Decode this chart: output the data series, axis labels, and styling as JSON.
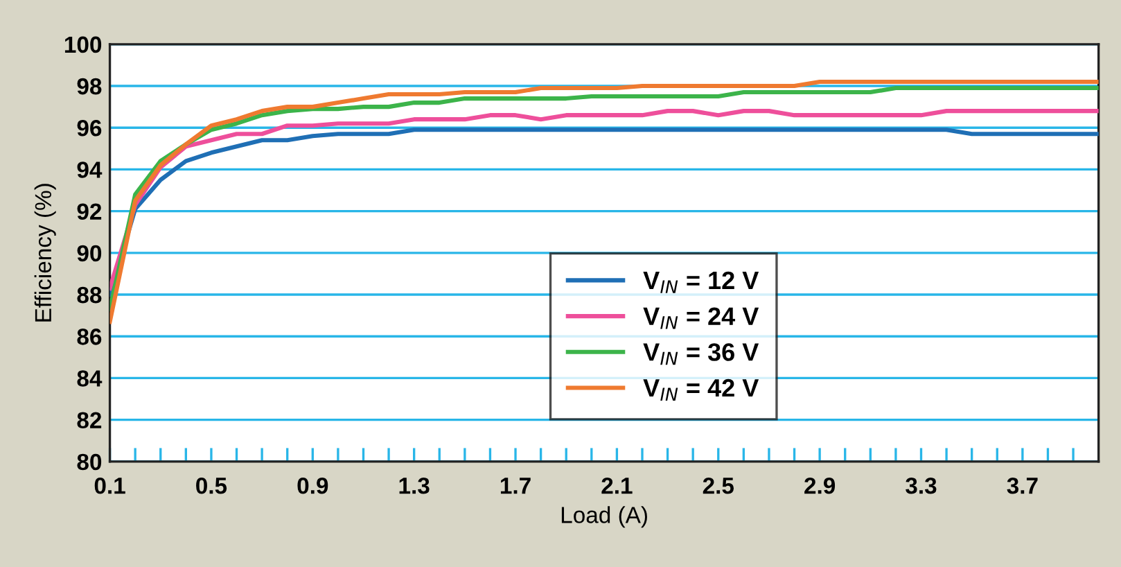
{
  "chart_data": {
    "type": "line",
    "xlabel": "Load (A)",
    "ylabel": "Efficiency (%)",
    "x": [
      0.1,
      0.2,
      0.3,
      0.4,
      0.5,
      0.6,
      0.7,
      0.8,
      0.9,
      1.0,
      1.1,
      1.2,
      1.3,
      1.4,
      1.5,
      1.6,
      1.7,
      1.8,
      1.9,
      2.0,
      2.1,
      2.2,
      2.3,
      2.4,
      2.5,
      2.6,
      2.7,
      2.8,
      2.9,
      3.0,
      3.1,
      3.2,
      3.3,
      3.4,
      3.5,
      3.6,
      3.7,
      3.8,
      3.9,
      4.0
    ],
    "series": [
      {
        "name": "V$_{IN}$ = 12 V",
        "color": "#1f6fb5",
        "values": [
          88.0,
          92.1,
          93.5,
          94.4,
          94.8,
          95.1,
          95.4,
          95.4,
          95.6,
          95.7,
          95.7,
          95.7,
          95.9,
          95.9,
          95.9,
          95.9,
          95.9,
          95.9,
          95.9,
          95.9,
          95.9,
          95.9,
          95.9,
          95.9,
          95.9,
          95.9,
          95.9,
          95.9,
          95.9,
          95.9,
          95.9,
          95.9,
          95.9,
          95.9,
          95.7,
          95.7,
          95.7,
          95.7,
          95.7,
          95.7
        ]
      },
      {
        "name": "V$_{IN}$ = 24 V",
        "color": "#ee4f9b",
        "values": [
          88.3,
          92.3,
          94.1,
          95.1,
          95.4,
          95.7,
          95.7,
          96.1,
          96.1,
          96.2,
          96.2,
          96.2,
          96.4,
          96.4,
          96.4,
          96.6,
          96.6,
          96.4,
          96.6,
          96.6,
          96.6,
          96.6,
          96.8,
          96.8,
          96.6,
          96.8,
          96.8,
          96.6,
          96.6,
          96.6,
          96.6,
          96.6,
          96.6,
          96.8,
          96.8,
          96.8,
          96.8,
          96.8,
          96.8,
          96.8
        ]
      },
      {
        "name": "V$_{IN}$ = 36 V",
        "color": "#3cb44a",
        "values": [
          87.3,
          92.8,
          94.4,
          95.2,
          95.9,
          96.2,
          96.6,
          96.8,
          96.9,
          96.9,
          97.0,
          97.0,
          97.2,
          97.2,
          97.4,
          97.4,
          97.4,
          97.4,
          97.4,
          97.5,
          97.5,
          97.5,
          97.5,
          97.5,
          97.5,
          97.7,
          97.7,
          97.7,
          97.7,
          97.7,
          97.7,
          97.9,
          97.9,
          97.9,
          97.9,
          97.9,
          97.9,
          97.9,
          97.9,
          97.9
        ]
      },
      {
        "name": "V$_{IN}$ = 42 V",
        "color": "#ef7a30",
        "values": [
          86.7,
          92.5,
          94.2,
          95.2,
          96.1,
          96.4,
          96.8,
          97.0,
          97.0,
          97.2,
          97.4,
          97.6,
          97.6,
          97.6,
          97.7,
          97.7,
          97.7,
          97.9,
          97.9,
          97.9,
          97.9,
          98.0,
          98.0,
          98.0,
          98.0,
          98.0,
          98.0,
          98.0,
          98.2,
          98.2,
          98.2,
          98.2,
          98.2,
          98.2,
          98.2,
          98.2,
          98.2,
          98.2,
          98.2,
          98.2
        ]
      }
    ],
    "xlim": [
      0.1,
      4.0
    ],
    "ylim": [
      80,
      100
    ],
    "xticks": [
      0.1,
      {
        "value": 0.2,
        "label": null
      },
      {
        "value": 0.3,
        "label": null
      },
      {
        "value": 0.4,
        "label": null
      },
      0.5,
      {
        "value": 0.6,
        "label": null
      },
      {
        "value": 0.7,
        "label": null
      },
      {
        "value": 0.8,
        "label": null
      },
      0.9,
      {
        "value": 1.0,
        "label": null
      },
      {
        "value": 1.1,
        "label": null
      },
      {
        "value": 1.2,
        "label": null
      },
      1.3,
      {
        "value": 1.4,
        "label": null
      },
      {
        "value": 1.5,
        "label": null
      },
      {
        "value": 1.6,
        "label": null
      },
      1.7,
      {
        "value": 1.8,
        "label": null
      },
      {
        "value": 1.9,
        "label": null
      },
      {
        "value": 2.0,
        "label": null
      },
      2.1,
      {
        "value": 2.2,
        "label": null
      },
      {
        "value": 2.3,
        "label": null
      },
      {
        "value": 2.4,
        "label": null
      },
      2.5,
      {
        "value": 2.6,
        "label": null
      },
      {
        "value": 2.7,
        "label": null
      },
      {
        "value": 2.8,
        "label": null
      },
      2.9,
      {
        "value": 3.0,
        "label": null
      },
      {
        "value": 3.1,
        "label": null
      },
      {
        "value": 3.2,
        "label": null
      },
      3.3,
      {
        "value": 3.4,
        "label": null
      },
      {
        "value": 3.5,
        "label": null
      },
      {
        "value": 3.6,
        "label": null
      },
      3.7,
      {
        "value": 3.8,
        "label": null
      },
      {
        "value": 3.9,
        "label": null
      }
    ],
    "yticks": [
      80,
      82,
      84,
      86,
      88,
      90,
      92,
      94,
      96,
      98,
      100
    ],
    "grid": "y",
    "legend": "center",
    "marker": "none",
    "line_style": "solid"
  }
}
